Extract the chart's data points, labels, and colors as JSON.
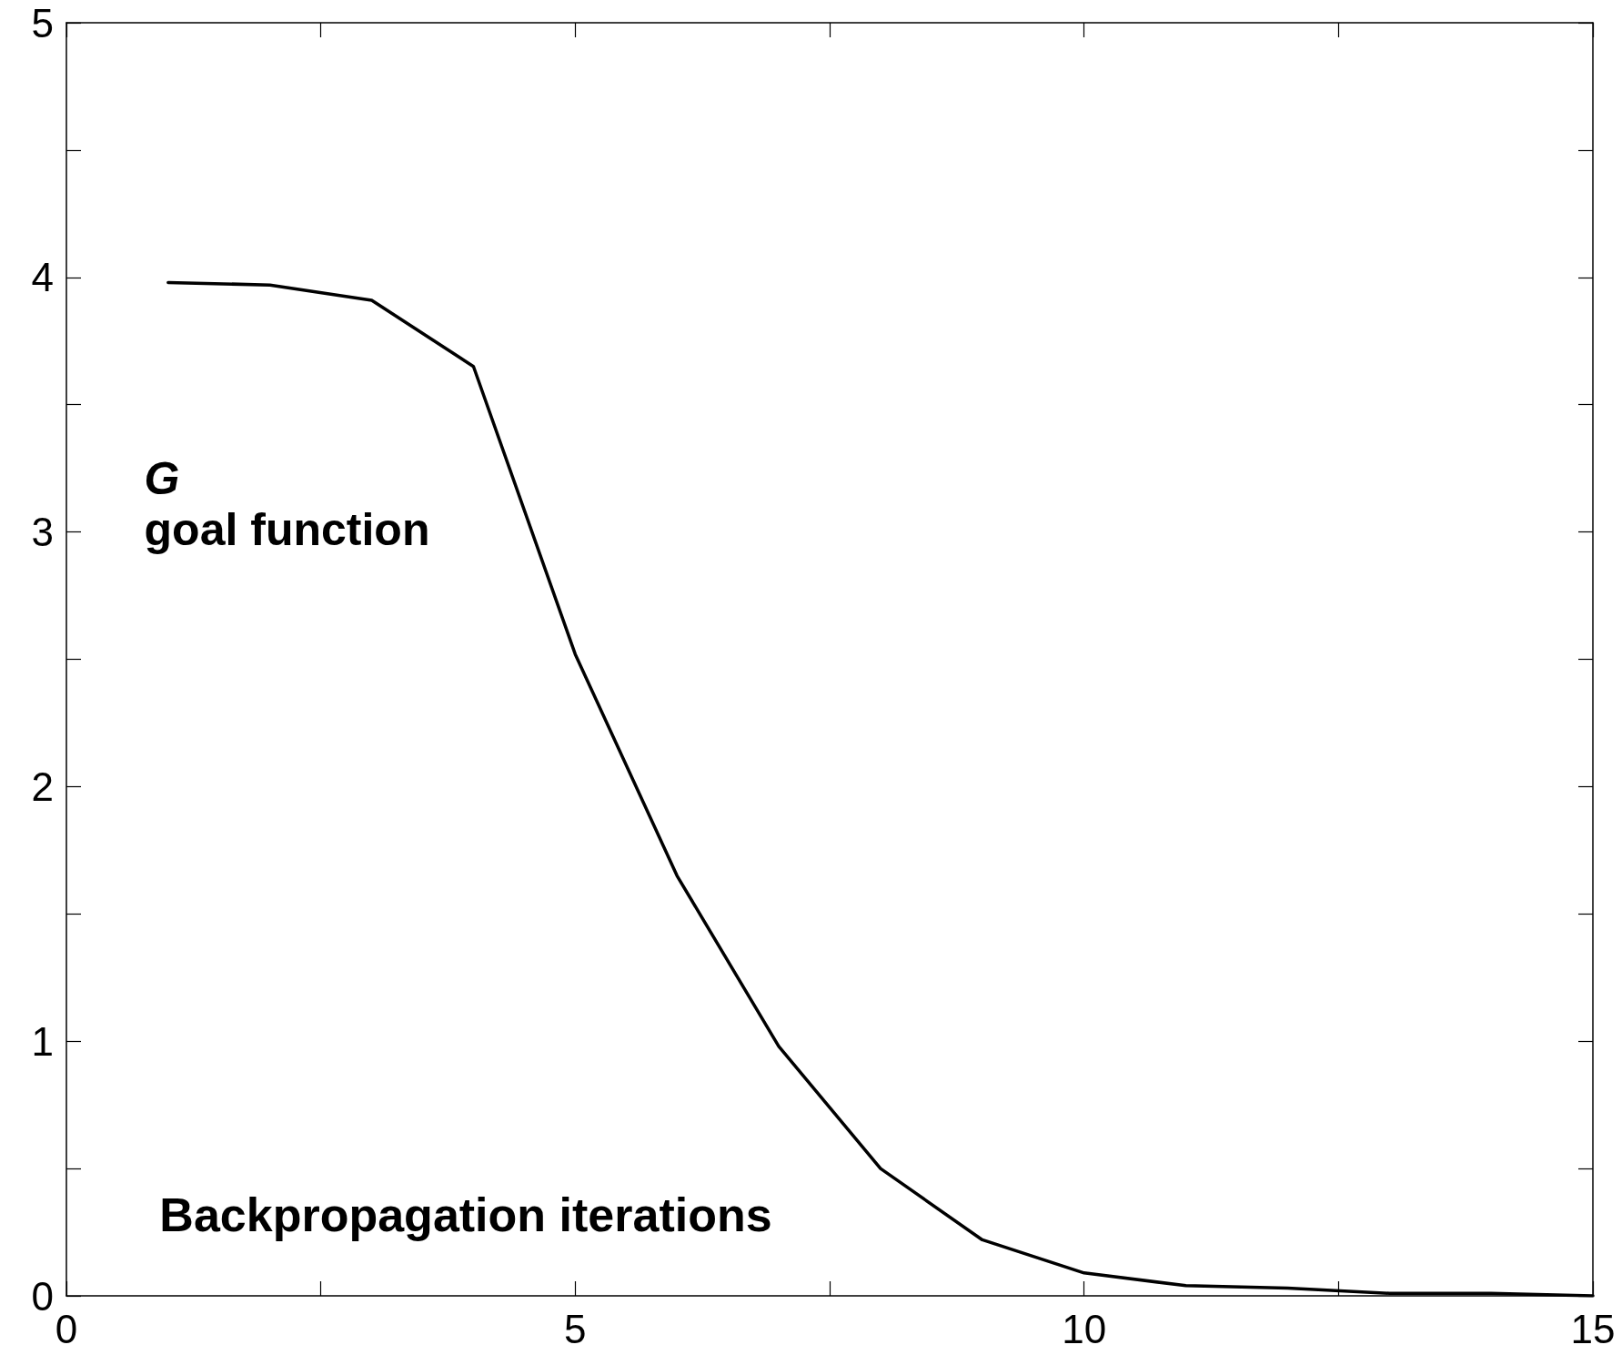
{
  "chart_data": {
    "type": "line",
    "xlabel": "Backpropagation iterations",
    "ylabel": "G\ngoal function",
    "x": [
      1,
      2,
      3,
      4,
      5,
      6,
      7,
      8,
      9,
      10,
      11,
      12,
      13,
      14,
      15
    ],
    "series": [
      {
        "color": "#000000",
        "values": [
          3.98,
          3.97,
          3.91,
          3.65,
          2.52,
          1.65,
          0.98,
          0.5,
          0.22,
          0.09,
          0.04,
          0.03,
          0.01,
          0.01,
          0.0
        ]
      }
    ],
    "xlim": [
      0,
      15
    ],
    "xticks": [
      0,
      {
        "value": 2.5,
        "label": null
      },
      5,
      {
        "value": 7.5,
        "label": null
      },
      10,
      {
        "value": 12.5,
        "label": null
      },
      15
    ],
    "ylim": [
      0,
      5
    ],
    "yticks": [
      0,
      {
        "value": 0.5,
        "label": null
      },
      1,
      {
        "value": 1.5,
        "label": null
      },
      2,
      {
        "value": 2.5,
        "label": null
      },
      3,
      {
        "value": 3.5,
        "label": null
      },
      4,
      {
        "value": 4.5,
        "label": null
      },
      5
    ],
    "marker": "none",
    "line_style": "solid"
  }
}
